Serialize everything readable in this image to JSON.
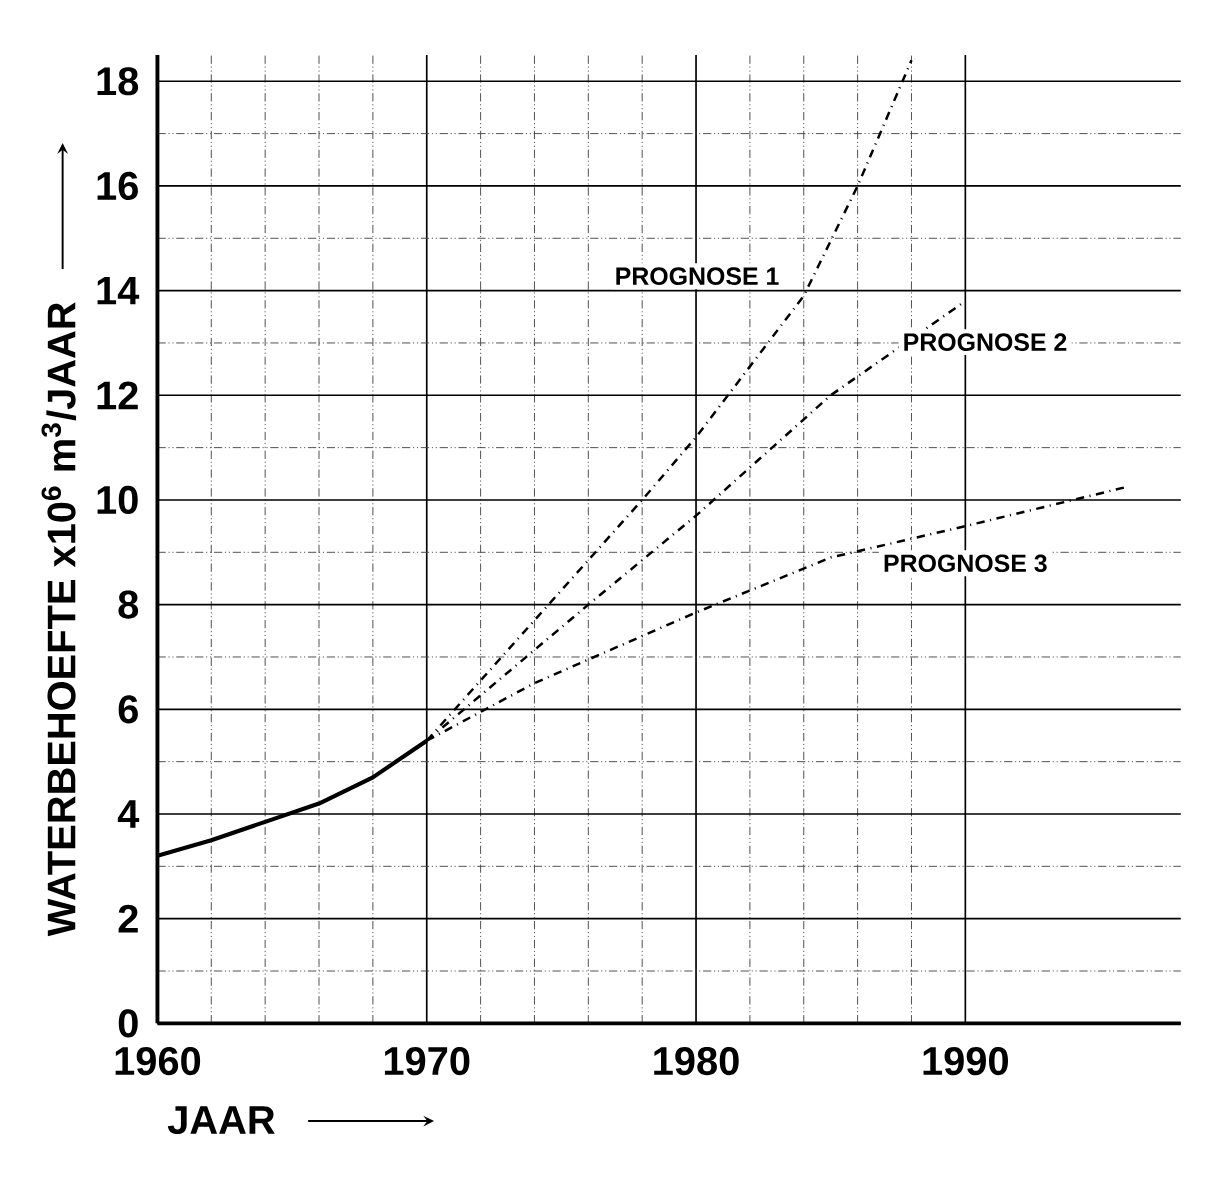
{
  "chart_data": {
    "type": "line",
    "xlabel": "JAAR",
    "ylabel": "WATERBEHOEFTE x10$^{6}$ m$^{3}$/JAAR",
    "xlim": [
      1960,
      1998
    ],
    "ylim": [
      0,
      18.5
    ],
    "xticks": [
      1960,
      1970,
      1980,
      1990
    ],
    "yticks": [
      0,
      2,
      4,
      6,
      8,
      10,
      12,
      14,
      16,
      18
    ],
    "grid": true,
    "marker": "none",
    "series": [
      {
        "color": "#000000",
        "line_style": "solid",
        "x": [
          1960,
          1962,
          1964,
          1966,
          1968,
          1970
        ],
        "values": [
          3.2,
          3.5,
          3.85,
          4.2,
          4.7,
          5.4
        ]
      },
      {
        "name": "PROGNOSE 1",
        "color": "#000000",
        "line_style": "dashed",
        "x": [
          1970,
          1974,
          1978,
          1980,
          1984,
          1986,
          1988
        ],
        "values": [
          5.4,
          7.7,
          10.0,
          11.2,
          13.9,
          16.0,
          18.4
        ]
      },
      {
        "name": "PROGNOSE 2",
        "color": "#000000",
        "line_style": "dashed",
        "x": [
          1970,
          1976,
          1980,
          1985,
          1990
        ],
        "values": [
          5.4,
          8.0,
          9.7,
          12.0,
          13.8
        ]
      },
      {
        "name": "PROGNOSE 3",
        "color": "#000000",
        "line_style": "dashed",
        "x": [
          1970,
          1974,
          1980,
          1985,
          1990,
          1996
        ],
        "values": [
          5.4,
          6.5,
          7.85,
          8.9,
          9.5,
          10.25
        ]
      }
    ]
  }
}
